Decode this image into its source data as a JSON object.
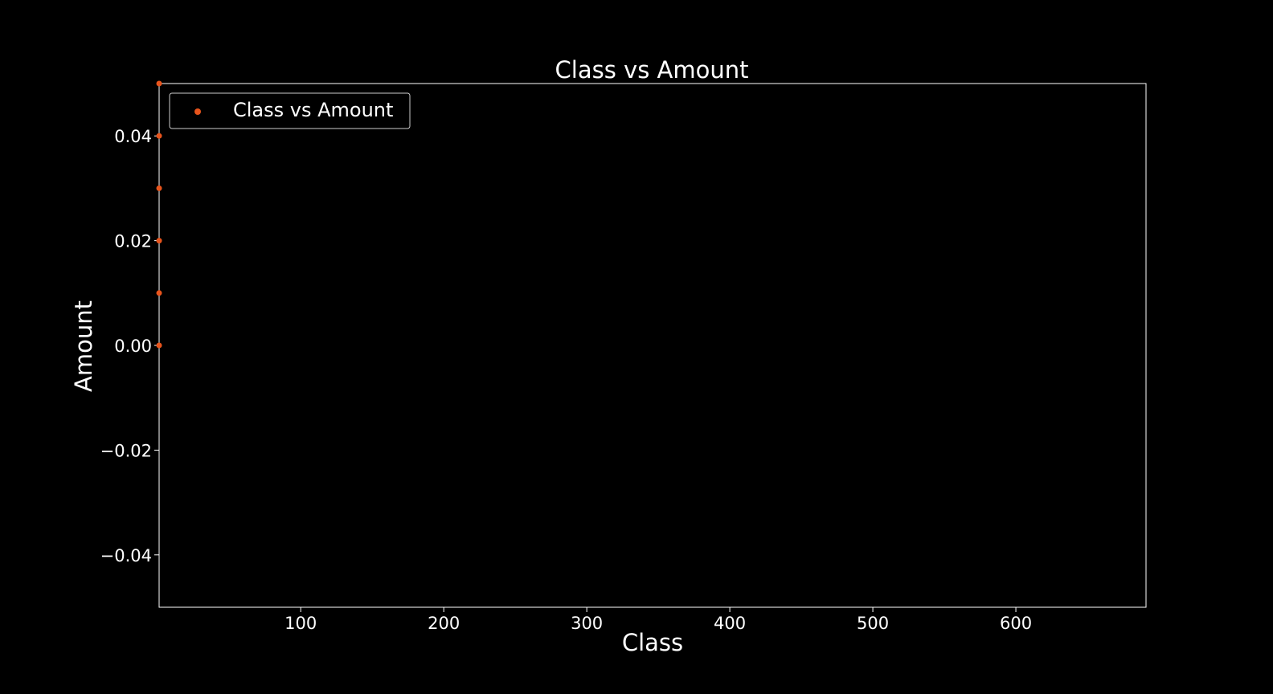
{
  "chart_data": {
    "type": "scatter",
    "title": "Class vs Amount",
    "xlabel": "Class",
    "ylabel": "Amount",
    "xlim": [
      1,
      691
    ],
    "ylim": [
      -0.05,
      0.05
    ],
    "x_ticks": [
      100,
      200,
      300,
      400,
      500,
      600
    ],
    "y_ticks": [
      -0.04,
      -0.02,
      0.0,
      0.02,
      0.04
    ],
    "x_tick_labels": [
      "100",
      "200",
      "300",
      "400",
      "500",
      "600"
    ],
    "y_tick_labels": [
      "−0.04",
      "−0.02",
      "0.00",
      "0.02",
      "0.04"
    ],
    "grid": false,
    "legend": {
      "position": "top-left",
      "entries": [
        "Class vs Amount"
      ]
    },
    "series": [
      {
        "name": "Class vs Amount",
        "color": "#e8541c",
        "points": [
          {
            "x": 1,
            "y": 0.0
          },
          {
            "x": 1,
            "y": 0.01
          },
          {
            "x": 1,
            "y": 0.02
          },
          {
            "x": 1,
            "y": 0.03
          },
          {
            "x": 1,
            "y": 0.04
          },
          {
            "x": 1,
            "y": 0.05
          }
        ]
      }
    ],
    "colors": {
      "background": "#000000",
      "axes": "#ffffff",
      "text": "#ffffff",
      "marker": "#e8541c"
    }
  }
}
